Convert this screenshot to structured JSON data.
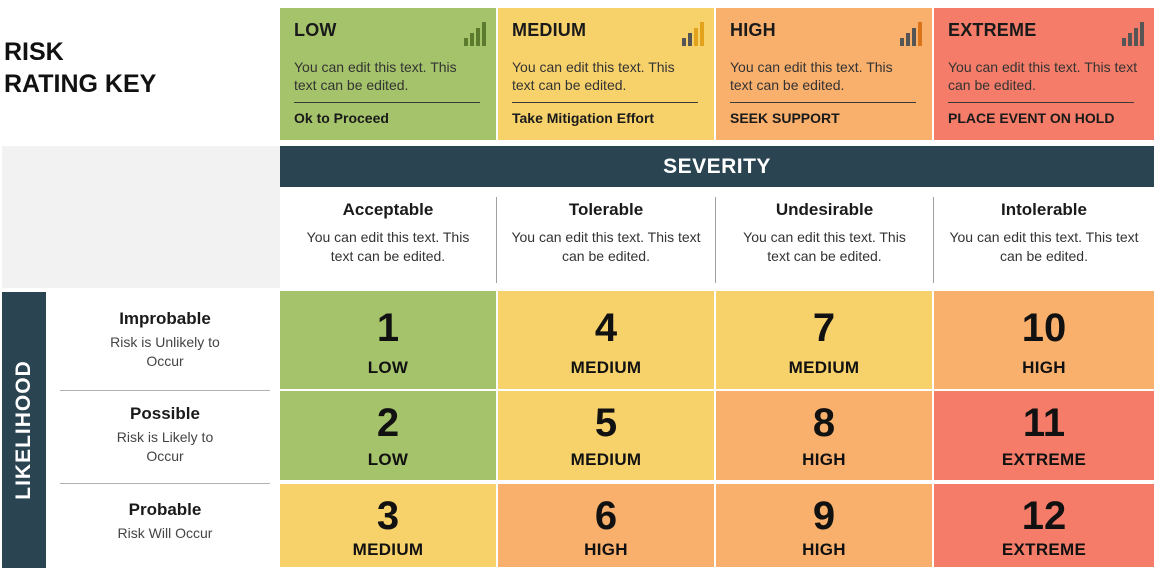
{
  "title": {
    "line1": "RISK",
    "line2": "RATING KEY"
  },
  "colors": {
    "low": "#a4c36a",
    "medium": "#f7d26b",
    "high": "#f9b06d",
    "extreme": "#f47c68",
    "header_dark": "#2b4452",
    "bars_low": "#5b7a2e",
    "bars_medium": "#e3a21b",
    "bars_high": "#d9731a",
    "bars_extreme": "#b84836"
  },
  "key": [
    {
      "name": "LOW",
      "desc": "You can edit this text. This text can be edited.",
      "action": "Ok to Proceed",
      "icon": "signal-bars-icon"
    },
    {
      "name": "MEDIUM",
      "desc": "You can edit this text. This text can be edited.",
      "action": "Take Mitigation Effort",
      "icon": "signal-bars-icon"
    },
    {
      "name": "HIGH",
      "desc": "You can edit this text. This text can be edited.",
      "action": "SEEK SUPPORT",
      "icon": "signal-bars-icon"
    },
    {
      "name": "EXTREME",
      "desc": "You can edit this text. This text can be edited.",
      "action": "PLACE EVENT ON HOLD",
      "icon": "signal-bars-icon"
    }
  ],
  "severity": {
    "label": "SEVERITY",
    "columns": [
      {
        "name": "Acceptable",
        "desc": "You can edit this text. This text can be edited."
      },
      {
        "name": "Tolerable",
        "desc": "You can edit this text. This text can be edited."
      },
      {
        "name": "Undesirable",
        "desc": "You can edit this text. This text can be edited."
      },
      {
        "name": "Intolerable",
        "desc": "You can edit this text. This text can be edited."
      }
    ]
  },
  "likelihood": {
    "label": "LIKELIHOOD",
    "rows": [
      {
        "name": "Improbable",
        "desc": "Risk is Unlikely to Occur"
      },
      {
        "name": "Possible",
        "desc": "Risk is Likely to Occur"
      },
      {
        "name": "Probable",
        "desc": "Risk Will Occur"
      }
    ]
  },
  "matrix": [
    [
      {
        "num": "1",
        "label": "LOW",
        "level": "low"
      },
      {
        "num": "4",
        "label": "MEDIUM",
        "level": "medium"
      },
      {
        "num": "7",
        "label": "MEDIUM",
        "level": "medium"
      },
      {
        "num": "10",
        "label": "HIGH",
        "level": "high"
      }
    ],
    [
      {
        "num": "2",
        "label": "LOW",
        "level": "low"
      },
      {
        "num": "5",
        "label": "MEDIUM",
        "level": "medium"
      },
      {
        "num": "8",
        "label": "HIGH",
        "level": "high"
      },
      {
        "num": "11",
        "label": "EXTREME",
        "level": "extreme"
      }
    ],
    [
      {
        "num": "3",
        "label": "MEDIUM",
        "level": "medium"
      },
      {
        "num": "6",
        "label": "HIGH",
        "level": "high"
      },
      {
        "num": "9",
        "label": "HIGH",
        "level": "high"
      },
      {
        "num": "12",
        "label": "EXTREME",
        "level": "extreme"
      }
    ]
  ]
}
